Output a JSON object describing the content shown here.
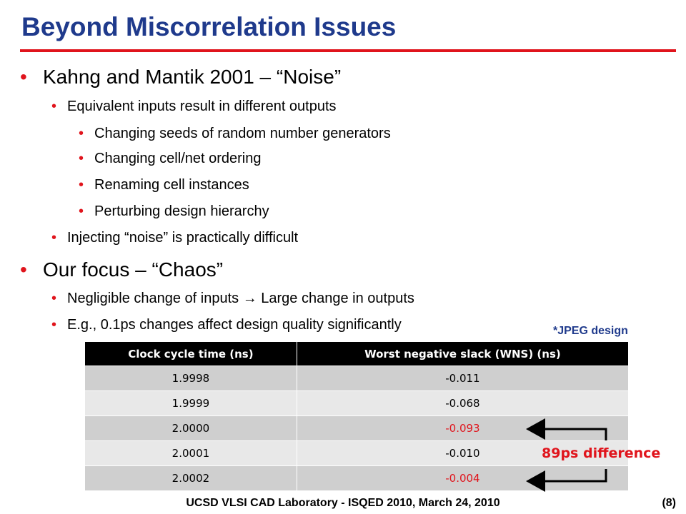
{
  "slide": {
    "title": "Beyond Miscorrelation Issues",
    "accent_color": "#e0141c",
    "title_color": "#1f3a8c"
  },
  "bullets": {
    "b1": "Kahng and Mantik 2001 – “Noise”",
    "b1_1": "Equivalent inputs result in different outputs",
    "b1_1_1": "Changing seeds of random number generators",
    "b1_1_2": "Changing cell/net ordering",
    "b1_1_3": "Renaming cell instances",
    "b1_1_4": "Perturbing design hierarchy",
    "b1_2": "Injecting “noise” is practically difficult",
    "b2": "Our focus – “Chaos”",
    "b2_1": "Negligible change of inputs → Large change in outputs",
    "b2_2": "E.g., 0.1ps changes affect design quality significantly"
  },
  "note": "*JPEG design",
  "table": {
    "headers": [
      "Clock cycle time (ns)",
      "Worst negative slack (WNS) (ns)"
    ],
    "rows": [
      [
        "1.9998",
        "-0.011"
      ],
      [
        "1.9999",
        "-0.068"
      ],
      [
        "2.0000",
        "-0.093"
      ],
      [
        "2.0001",
        "-0.010"
      ],
      [
        "2.0002",
        "-0.004"
      ]
    ]
  },
  "annotation": "89ps difference",
  "footer": {
    "text": "UCSD VLSI CAD Laboratory  - ISQED 2010,   March 24, 2010",
    "page": "(8)"
  }
}
